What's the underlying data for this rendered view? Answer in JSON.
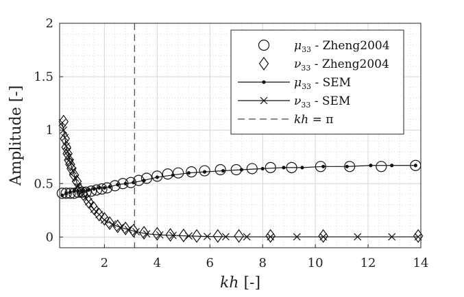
{
  "chart_data": {
    "type": "scatter",
    "title": "",
    "xlabel_main": "kh",
    "xlabel_unit": "[-]",
    "ylabel": "Amplitude [-]",
    "xlim": [
      0.3,
      14
    ],
    "ylim": [
      -0.1,
      2
    ],
    "xticks": [
      2,
      4,
      6,
      8,
      10,
      12,
      14
    ],
    "yticks": [
      0,
      0.5,
      1,
      1.5,
      2
    ],
    "ytick_labels": [
      "0",
      "0.5",
      "1",
      "1.5",
      "2"
    ],
    "grid": true,
    "minor_grid": true,
    "vline": {
      "x": 3.1416,
      "style": "dashed"
    },
    "legend_position": "top-right",
    "series": [
      {
        "name": "μ33 - Zheng2004",
        "legend_sym": "μ",
        "legend_sub": "33",
        "legend_rest": " - Zheng2004",
        "marker": "circle",
        "line": false,
        "x": [
          0.4,
          0.55,
          0.7,
          0.85,
          1.0,
          1.15,
          1.3,
          1.5,
          1.7,
          1.9,
          2.1,
          2.4,
          2.7,
          3.0,
          3.3,
          3.6,
          4.0,
          4.4,
          4.8,
          5.3,
          5.8,
          6.4,
          7.0,
          7.6,
          8.3,
          9.1,
          10.2,
          11.3,
          12.5,
          13.8
        ],
        "y": [
          0.41,
          0.41,
          0.41,
          0.41,
          0.42,
          0.42,
          0.42,
          0.43,
          0.44,
          0.45,
          0.46,
          0.48,
          0.5,
          0.51,
          0.53,
          0.55,
          0.57,
          0.59,
          0.6,
          0.61,
          0.62,
          0.63,
          0.63,
          0.64,
          0.65,
          0.65,
          0.66,
          0.66,
          0.66,
          0.67
        ]
      },
      {
        "name": "ν33 - Zheng2004",
        "legend_sym": "ν",
        "legend_sub": "33",
        "legend_rest": " - Zheng2004",
        "marker": "diamond",
        "line": false,
        "x": [
          0.45,
          0.5,
          0.55,
          0.6,
          0.65,
          0.7,
          0.75,
          0.85,
          0.95,
          1.05,
          1.2,
          1.4,
          1.6,
          1.8,
          2.0,
          2.2,
          2.5,
          2.8,
          3.1,
          3.5,
          4.0,
          4.5,
          5.0,
          5.5,
          6.3,
          7.1,
          8.3,
          10.3,
          13.9
        ],
        "y": [
          1.08,
          0.92,
          0.84,
          0.78,
          0.72,
          0.68,
          0.64,
          0.58,
          0.52,
          0.45,
          0.4,
          0.33,
          0.27,
          0.21,
          0.17,
          0.13,
          0.1,
          0.08,
          0.06,
          0.04,
          0.03,
          0.02,
          0.015,
          0.01,
          0.01,
          0.01,
          0.01,
          0.01,
          0.01
        ]
      },
      {
        "name": "μ33 - SEM",
        "legend_sym": "μ",
        "legend_sub": "33",
        "legend_rest": " - SEM",
        "marker": "dot",
        "line": true,
        "x": [
          0.4,
          0.55,
          0.7,
          0.85,
          1.0,
          1.2,
          1.4,
          1.6,
          1.8,
          2.0,
          2.2,
          2.5,
          2.8,
          3.1,
          3.5,
          4.0,
          4.6,
          5.2,
          5.8,
          6.5,
          7.2,
          8.0,
          8.8,
          9.5,
          10.3,
          11.2,
          12.1,
          12.9,
          13.8
        ],
        "y": [
          0.39,
          0.41,
          0.42,
          0.43,
          0.43,
          0.43,
          0.44,
          0.45,
          0.46,
          0.46,
          0.47,
          0.49,
          0.5,
          0.51,
          0.53,
          0.56,
          0.58,
          0.6,
          0.61,
          0.62,
          0.63,
          0.64,
          0.65,
          0.65,
          0.66,
          0.66,
          0.67,
          0.67,
          0.67
        ]
      },
      {
        "name": "ν33 - SEM",
        "legend_sym": "ν",
        "legend_sub": "33",
        "legend_rest": " - SEM",
        "marker": "x",
        "line": true,
        "x": [
          0.4,
          0.45,
          0.5,
          0.55,
          0.6,
          0.65,
          0.7,
          0.8,
          0.9,
          1.0,
          1.2,
          1.4,
          1.6,
          1.8,
          2.0,
          2.3,
          2.6,
          2.9,
          3.2,
          3.6,
          4.1,
          4.6,
          5.2,
          5.9,
          6.6,
          7.4,
          8.3,
          9.3,
          10.3,
          11.6,
          12.9,
          13.9
        ],
        "y": [
          1.07,
          1.0,
          0.93,
          0.85,
          0.8,
          0.75,
          0.7,
          0.62,
          0.55,
          0.47,
          0.4,
          0.33,
          0.26,
          0.21,
          0.16,
          0.12,
          0.09,
          0.07,
          0.05,
          0.03,
          0.02,
          0.015,
          0.01,
          0.005,
          0.003,
          0.002,
          0.002,
          0.002,
          0.002,
          0.002,
          0.002,
          0.002
        ]
      }
    ],
    "vline_legend": {
      "label_main": "kh",
      "label_rest": " = π"
    }
  }
}
